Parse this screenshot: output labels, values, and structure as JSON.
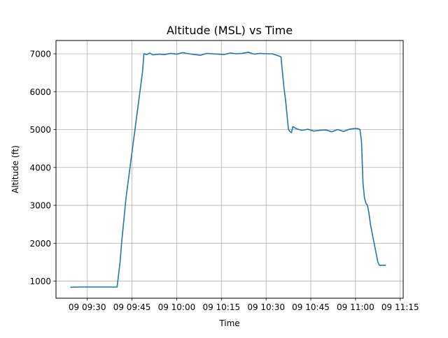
{
  "chart_data": {
    "type": "line",
    "title": "Altitude (MSL) vs Time",
    "xlabel": "Time",
    "ylabel": "Altitude (ft)",
    "grid": true,
    "legend": "none",
    "line_color": "#1f77b4",
    "xlim": [
      "09:19:30",
      "11:16:00"
    ],
    "ylim": [
      550,
      7350
    ],
    "x_ticks": [
      "09:30",
      "09:45",
      "10:00",
      "10:15",
      "10:30",
      "10:45",
      "11:00",
      "11:15"
    ],
    "x_tick_labels": [
      "09 09:30",
      "09 09:45",
      "09 10:00",
      "09 10:15",
      "09 10:30",
      "09 10:45",
      "09 11:00",
      "09 11:15"
    ],
    "y_ticks": [
      1000,
      2000,
      3000,
      4000,
      5000,
      6000,
      7000
    ],
    "y_tick_labels": [
      "1000",
      "2000",
      "3000",
      "4000",
      "5000",
      "6000",
      "7000"
    ],
    "series": [
      {
        "x": [
          "09:24:30",
          "09:27:00",
          "09:30:00",
          "09:33:00",
          "09:36:00",
          "09:39:00",
          "09:40:00",
          "09:41:00",
          "09:41:30",
          "09:42:00",
          "09:43:00",
          "09:44:00",
          "09:45:00",
          "09:46:00",
          "09:47:00",
          "09:48:00",
          "09:48:30",
          "09:49:00",
          "09:50:00",
          "09:51:00",
          "09:52:00",
          "09:54:00",
          "09:56:00",
          "09:58:00",
          "10:00:00",
          "10:02:00",
          "10:04:00",
          "10:06:00",
          "10:08:00",
          "10:10:00",
          "10:12:00",
          "10:14:00",
          "10:16:00",
          "10:18:00",
          "10:20:00",
          "10:22:00",
          "10:24:00",
          "10:26:00",
          "10:28:00",
          "10:30:00",
          "10:32:00",
          "10:34:00",
          "10:35:00",
          "10:35:30",
          "10:36:00",
          "10:36:30",
          "10:37:00",
          "10:37:30",
          "10:38:00",
          "10:38:30",
          "10:39:00",
          "10:40:00",
          "10:41:00",
          "10:42:00",
          "10:44:00",
          "10:46:00",
          "10:48:00",
          "10:50:00",
          "10:52:00",
          "10:54:00",
          "10:56:00",
          "10:58:00",
          "11:00:00",
          "11:01:00",
          "11:01:30",
          "11:02:00",
          "11:02:30",
          "11:03:00",
          "11:03:30",
          "11:04:00",
          "11:04:30",
          "11:05:00",
          "11:06:00",
          "11:07:00",
          "11:07:30",
          "11:08:00",
          "11:09:00",
          "11:10:00"
        ],
        "y": [
          840,
          845,
          845,
          845,
          845,
          845,
          845,
          1500,
          2000,
          2400,
          3200,
          3800,
          4400,
          5000,
          5600,
          6200,
          6500,
          7000,
          6980,
          7020,
          6970,
          6990,
          6980,
          7010,
          6990,
          7030,
          7000,
          6980,
          6960,
          7010,
          7000,
          6990,
          6980,
          7020,
          7000,
          7010,
          7040,
          6990,
          7010,
          7000,
          7000,
          6950,
          6920,
          6500,
          6100,
          5800,
          5400,
          5000,
          4950,
          4920,
          5080,
          5030,
          5000,
          4980,
          5010,
          4960,
          4980,
          4990,
          4940,
          5000,
          4950,
          5010,
          5030,
          5020,
          5000,
          4700,
          3600,
          3200,
          3050,
          3000,
          2800,
          2500,
          2100,
          1700,
          1500,
          1420,
          1420,
          1420
        ]
      }
    ]
  }
}
